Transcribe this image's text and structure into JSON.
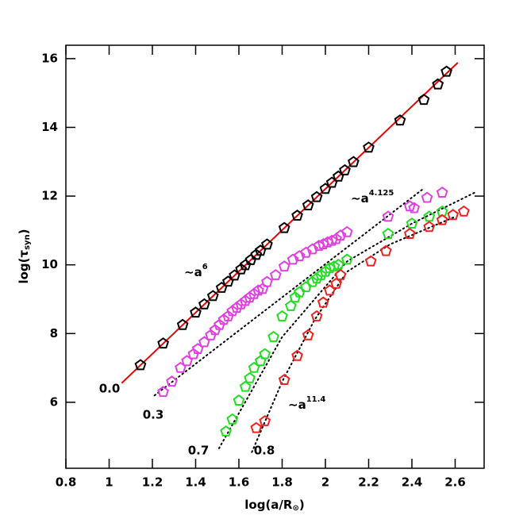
{
  "chart_data": {
    "type": "scatter",
    "xlabel": {
      "text": "log(a/R",
      "sub": "⊙",
      "end": ")"
    },
    "ylabel": {
      "text": "log(τ",
      "sub": "syn",
      "end": ")"
    },
    "xlim": [
      0.8,
      2.734
    ],
    "ylim": [
      4.08,
      16.39
    ],
    "xticks": [
      0.8,
      1,
      1.2,
      1.4,
      1.6,
      1.8,
      2,
      2.2,
      2.4,
      2.6
    ],
    "yticks": [
      6,
      8,
      10,
      12,
      14,
      16
    ],
    "series": [
      {
        "name": "0.0",
        "color": "#000000",
        "x": [
          1.145,
          1.25,
          1.34,
          1.4,
          1.44,
          1.48,
          1.52,
          1.55,
          1.58,
          1.61,
          1.63,
          1.655,
          1.68,
          1.7,
          1.73,
          1.81,
          1.87,
          1.92,
          1.96,
          2.0,
          2.03,
          2.06,
          2.09,
          2.13,
          2.2,
          2.345,
          2.455,
          2.52,
          2.56
        ],
        "values": [
          7.08,
          7.71,
          8.25,
          8.61,
          8.85,
          9.09,
          9.33,
          9.51,
          9.69,
          9.87,
          9.99,
          10.14,
          10.29,
          10.41,
          10.59,
          11.07,
          11.43,
          11.73,
          11.97,
          12.21,
          12.39,
          12.57,
          12.75,
          12.99,
          13.41,
          14.2,
          14.8,
          15.25,
          15.62
        ]
      },
      {
        "name": "0.3",
        "color": "#e040e0",
        "x": [
          1.25,
          1.29,
          1.33,
          1.36,
          1.39,
          1.41,
          1.44,
          1.47,
          1.49,
          1.51,
          1.53,
          1.55,
          1.57,
          1.59,
          1.61,
          1.63,
          1.65,
          1.67,
          1.69,
          1.71,
          1.73,
          1.77,
          1.81,
          1.85,
          1.88,
          1.91,
          1.94,
          1.97,
          1.99,
          2.01,
          2.03,
          2.05,
          2.07,
          2.1,
          2.29,
          2.39,
          2.41,
          2.47,
          2.54
        ],
        "values": [
          6.3,
          6.6,
          7.0,
          7.2,
          7.4,
          7.55,
          7.75,
          7.95,
          8.1,
          8.25,
          8.4,
          8.5,
          8.65,
          8.75,
          8.85,
          8.95,
          9.05,
          9.15,
          9.25,
          9.3,
          9.5,
          9.7,
          9.95,
          10.15,
          10.25,
          10.35,
          10.45,
          10.55,
          10.6,
          10.65,
          10.7,
          10.75,
          10.85,
          10.95,
          11.4,
          11.7,
          11.65,
          11.95,
          12.1
        ]
      },
      {
        "name": "0.7",
        "color": "#22dd22",
        "x": [
          1.54,
          1.57,
          1.6,
          1.63,
          1.65,
          1.67,
          1.7,
          1.72,
          1.76,
          1.8,
          1.84,
          1.86,
          1.88,
          1.91,
          1.94,
          1.96,
          1.98,
          2.0,
          2.02,
          2.04,
          2.06,
          2.1,
          2.29,
          2.4,
          2.48,
          2.54
        ],
        "values": [
          5.15,
          5.5,
          6.05,
          6.45,
          6.7,
          7.0,
          7.2,
          7.4,
          7.9,
          8.5,
          8.8,
          9.05,
          9.2,
          9.35,
          9.5,
          9.6,
          9.7,
          9.8,
          9.9,
          9.95,
          10.0,
          10.15,
          10.9,
          11.2,
          11.4,
          11.55
        ]
      },
      {
        "name": "0.8",
        "color": "#ee2222",
        "x": [
          1.68,
          1.72,
          1.81,
          1.87,
          1.92,
          1.96,
          1.99,
          2.02,
          2.05,
          2.07,
          2.21,
          2.28,
          2.39,
          2.48,
          2.54,
          2.59,
          2.64
        ],
        "values": [
          5.25,
          5.45,
          6.65,
          7.35,
          7.95,
          8.5,
          8.9,
          9.25,
          9.45,
          9.7,
          10.1,
          10.4,
          10.9,
          11.1,
          11.3,
          11.45,
          11.55
        ]
      }
    ],
    "fits": [
      {
        "color": "#ee0000",
        "x": [
          1.06,
          2.61
        ],
        "values": [
          6.57,
          15.87
        ]
      },
      {
        "color": "#000000",
        "x": [
          1.21,
          2.45
        ],
        "values": [
          6.2,
          12.2
        ]
      },
      {
        "color": "#000000",
        "x": [
          1.508,
          1.8,
          2.1,
          2.4,
          2.69
        ],
        "values": [
          4.66,
          7.9,
          10.1,
          11.2,
          12.1
        ]
      },
      {
        "color": "#000000",
        "x": [
          1.66,
          1.8,
          1.95,
          2.1,
          2.3,
          2.6
        ],
        "values": [
          4.55,
          6.6,
          8.4,
          9.8,
          10.6,
          11.4
        ]
      }
    ],
    "annotations": [
      {
        "text": "∼a",
        "sup": "6"
      },
      {
        "text": "∼a",
        "sup": "4.125"
      },
      {
        "text": "∼a",
        "sup": "11.4"
      }
    ]
  }
}
